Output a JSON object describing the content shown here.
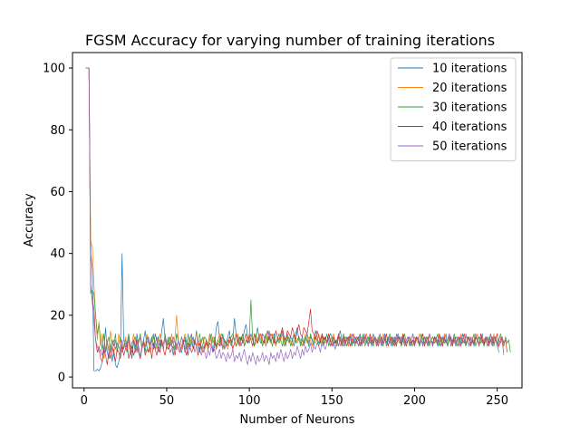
{
  "chart_data": {
    "type": "line",
    "title": "FGSM Accuracy for varying number of training iterations",
    "xlabel": "Number of Neurons",
    "ylabel": "Accuracy",
    "xlim": [
      -7,
      265
    ],
    "ylim": [
      -3.5,
      105
    ],
    "xticks": [
      0,
      50,
      100,
      150,
      200,
      250
    ],
    "yticks": [
      0,
      20,
      40,
      60,
      80,
      100
    ],
    "grid": false,
    "legend_position": "top-right",
    "series": [
      {
        "name": "10 iterations",
        "color": "#1f77b4",
        "x_start": 1,
        "x_step": 1,
        "values": [
          100,
          100,
          100,
          40,
          35,
          2,
          2,
          2.5,
          2,
          3,
          5,
          8,
          16,
          8,
          6,
          10,
          5,
          9,
          4,
          3,
          5,
          8,
          40,
          12,
          10,
          8,
          13,
          10,
          6,
          12,
          8,
          14,
          10,
          6,
          9,
          12,
          15,
          10,
          8,
          11,
          13,
          9,
          14,
          12,
          8,
          10,
          15,
          19,
          12,
          10,
          9,
          13,
          11,
          7,
          10,
          14,
          12,
          9,
          8,
          11,
          13,
          10,
          7,
          12,
          14,
          9,
          11,
          15,
          10,
          8,
          12,
          13,
          9,
          11,
          10,
          14,
          12,
          8,
          10,
          16,
          18,
          12,
          10,
          14,
          9,
          11,
          13,
          15,
          10,
          12,
          19,
          14,
          11,
          13,
          10,
          12,
          15,
          17,
          13,
          11,
          14,
          12,
          10,
          13,
          16,
          12,
          11,
          14,
          13,
          10,
          12,
          15,
          11,
          13,
          14,
          10,
          12,
          11,
          13,
          15,
          12,
          10,
          14,
          11,
          13,
          12,
          10,
          14,
          16,
          12,
          11,
          13,
          10,
          12,
          14,
          11,
          13,
          12,
          10,
          15,
          13,
          11,
          12,
          14,
          10,
          13,
          11,
          12,
          14,
          13,
          10,
          12,
          11,
          13,
          15,
          12,
          10,
          11,
          13,
          12,
          14,
          10,
          12,
          13,
          11,
          12,
          14,
          10,
          13,
          12,
          11,
          12,
          13,
          10,
          14,
          12,
          11,
          13,
          12,
          10,
          12,
          14,
          11,
          13,
          12,
          10,
          13,
          11,
          12,
          14,
          12,
          10,
          13,
          11,
          12,
          13,
          10,
          12,
          14,
          11,
          12,
          13,
          10,
          12,
          11,
          13,
          12,
          10,
          14,
          12,
          11,
          13,
          12,
          10,
          12,
          13,
          11,
          12,
          14,
          10,
          12,
          13,
          11,
          12,
          10,
          13,
          12,
          11,
          14,
          12,
          10,
          12,
          13,
          11,
          12,
          10,
          13,
          12,
          11,
          12,
          14,
          10,
          12,
          13,
          11,
          12,
          10,
          13,
          12,
          11,
          8
        ]
      },
      {
        "name": "20 iterations",
        "color": "#ff7f0e",
        "x_start": 1,
        "x_step": 1,
        "values": [
          100,
          100,
          100,
          44,
          42,
          30,
          20,
          12,
          18,
          10,
          14,
          6,
          9,
          12,
          8,
          15,
          10,
          7,
          12,
          9,
          14,
          11,
          8,
          10,
          13,
          9,
          12,
          7,
          11,
          14,
          10,
          8,
          12,
          13,
          9,
          11,
          10,
          14,
          12,
          8,
          10,
          13,
          11,
          9,
          12,
          14,
          10,
          11,
          13,
          9,
          12,
          10,
          14,
          11,
          13,
          20,
          12,
          10,
          9,
          11,
          14,
          12,
          10,
          13,
          11,
          9,
          12,
          14,
          10,
          12,
          11,
          13,
          9,
          12,
          10,
          14,
          11,
          13,
          12,
          10,
          12,
          14,
          11,
          13,
          12,
          10,
          9,
          12,
          11,
          13,
          12,
          10,
          14,
          11,
          12,
          13,
          10,
          12,
          11,
          14,
          12,
          13,
          10,
          11,
          12,
          14,
          13,
          11,
          12,
          10,
          13,
          12,
          11,
          14,
          12,
          10,
          13,
          11,
          12,
          14,
          10,
          12,
          13,
          11,
          12,
          10,
          14,
          12,
          11,
          13,
          12,
          10,
          12,
          14,
          11,
          13,
          12,
          10,
          13,
          11,
          12,
          14,
          12,
          10,
          13,
          11,
          12,
          13,
          10,
          12,
          14,
          11,
          12,
          13,
          10,
          12,
          11,
          13,
          12,
          10,
          14,
          12,
          11,
          13,
          12,
          10,
          12,
          13,
          11,
          12,
          14,
          10,
          12,
          13,
          11,
          12,
          10,
          13,
          12,
          11,
          14,
          12,
          10,
          12,
          13,
          11,
          12,
          10,
          13,
          12,
          11,
          12,
          14,
          10,
          12,
          13,
          11,
          12,
          10,
          13,
          12,
          11,
          14,
          12,
          10,
          13,
          11,
          12,
          14,
          12,
          10,
          13,
          11,
          12,
          13,
          10,
          12,
          14,
          11,
          12,
          13,
          10,
          12,
          11,
          13,
          12,
          10,
          14,
          12,
          11,
          13,
          12,
          10,
          12,
          13,
          11,
          12,
          14,
          10,
          12,
          13,
          11,
          12,
          10,
          13,
          12,
          11,
          14,
          12,
          10,
          12,
          13,
          11,
          8
        ]
      },
      {
        "name": "30 iterations",
        "color": "#2ca02c",
        "x_start": 1,
        "x_step": 1,
        "values": [
          100,
          100,
          100,
          27,
          28,
          27,
          20,
          14,
          17,
          12,
          9,
          14,
          8,
          11,
          13,
          9,
          12,
          10,
          14,
          8,
          11,
          13,
          10,
          9,
          12,
          11,
          14,
          10,
          8,
          12,
          13,
          9,
          11,
          14,
          10,
          12,
          8,
          13,
          11,
          10,
          12,
          14,
          9,
          11,
          13,
          10,
          12,
          9,
          14,
          11,
          13,
          10,
          12,
          11,
          9,
          14,
          12,
          10,
          13,
          11,
          12,
          9,
          14,
          10,
          12,
          13,
          11,
          10,
          12,
          14,
          9,
          11,
          13,
          12,
          10,
          12,
          14,
          11,
          13,
          10,
          12,
          11,
          14,
          13,
          12,
          10,
          12,
          11,
          13,
          14,
          12,
          10,
          11,
          13,
          12,
          14,
          10,
          12,
          11,
          13,
          25,
          12,
          10,
          14,
          11,
          13,
          12,
          10,
          12,
          14,
          11,
          13,
          12,
          10,
          13,
          11,
          12,
          14,
          12,
          10,
          13,
          11,
          12,
          13,
          10,
          12,
          14,
          11,
          12,
          13,
          10,
          12,
          11,
          13,
          12,
          10,
          14,
          12,
          11,
          13,
          12,
          10,
          12,
          13,
          11,
          12,
          14,
          10,
          12,
          13,
          11,
          12,
          10,
          13,
          12,
          11,
          14,
          12,
          10,
          12,
          13,
          11,
          12,
          10,
          13,
          12,
          11,
          12,
          14,
          10,
          12,
          13,
          11,
          12,
          10,
          13,
          12,
          11,
          14,
          12,
          10,
          13,
          11,
          12,
          14,
          12,
          10,
          13,
          11,
          12,
          13,
          10,
          12,
          14,
          11,
          12,
          13,
          10,
          12,
          11,
          13,
          12,
          10,
          14,
          12,
          11,
          13,
          12,
          10,
          12,
          13,
          11,
          12,
          14,
          10,
          12,
          13,
          11,
          12,
          10,
          13,
          12,
          11,
          14,
          12,
          10,
          12,
          13,
          11,
          12,
          10,
          13,
          12,
          11,
          12,
          14,
          10,
          12,
          13,
          11,
          12,
          10,
          13,
          12,
          11,
          14,
          12,
          10,
          13,
          11,
          12,
          14,
          12,
          10,
          13,
          11,
          12,
          8
        ]
      },
      {
        "name": "40 iterations",
        "color": "#d62728",
        "x_start": 1,
        "x_step": 1,
        "values": [
          100,
          100,
          100,
          30,
          25,
          22,
          12,
          8,
          10,
          6,
          5,
          9,
          7,
          4,
          8,
          6,
          10,
          7,
          5,
          9,
          8,
          6,
          10,
          7,
          9,
          11,
          6,
          8,
          10,
          7,
          9,
          12,
          8,
          6,
          10,
          11,
          7,
          9,
          8,
          10,
          6,
          11,
          9,
          7,
          10,
          8,
          12,
          9,
          7,
          10,
          11,
          8,
          9,
          10,
          7,
          11,
          9,
          8,
          10,
          12,
          9,
          7,
          11,
          10,
          8,
          9,
          12,
          10,
          7,
          11,
          9,
          8,
          10,
          12,
          9,
          11,
          10,
          8,
          12,
          9,
          11,
          10,
          13,
          9,
          12,
          11,
          10,
          13,
          12,
          9,
          11,
          14,
          12,
          10,
          13,
          11,
          12,
          14,
          11,
          13,
          12,
          10,
          14,
          12,
          11,
          13,
          14,
          12,
          11,
          13,
          15,
          12,
          14,
          13,
          11,
          15,
          13,
          12,
          14,
          16,
          13,
          12,
          15,
          14,
          13,
          16,
          14,
          12,
          15,
          17,
          14,
          13,
          16,
          15,
          14,
          18,
          22,
          15,
          14,
          12,
          15,
          13,
          11,
          14,
          12,
          13,
          11,
          14,
          12,
          10,
          13,
          11,
          12,
          14,
          12,
          10,
          13,
          11,
          12,
          13,
          10,
          12,
          14,
          11,
          12,
          13,
          10,
          12,
          11,
          13,
          12,
          10,
          14,
          12,
          11,
          13,
          12,
          10,
          12,
          13,
          11,
          12,
          14,
          10,
          12,
          13,
          11,
          12,
          10,
          13,
          12,
          11,
          14,
          12,
          10,
          12,
          13,
          11,
          12,
          10,
          13,
          12,
          11,
          12,
          14,
          10,
          12,
          13,
          11,
          12,
          10,
          13,
          12,
          11,
          14,
          12,
          10,
          13,
          11,
          12,
          14,
          12,
          10,
          13,
          11,
          12,
          13,
          10,
          12,
          14,
          11,
          12,
          13,
          10,
          12,
          11,
          13,
          12,
          10,
          14,
          12,
          11,
          13,
          12,
          10,
          12,
          13,
          11,
          12,
          14,
          10,
          12,
          13,
          11,
          12,
          8
        ]
      },
      {
        "name": "50 iterations",
        "color": "#9467bd",
        "x_start": 1,
        "x_step": 1,
        "values": [
          100,
          100,
          100,
          30,
          24,
          18,
          12,
          10,
          8,
          9,
          7,
          10,
          8,
          11,
          9,
          8,
          10,
          12,
          9,
          11,
          10,
          8,
          12,
          9,
          11,
          10,
          13,
          9,
          11,
          12,
          10,
          8,
          11,
          13,
          9,
          12,
          10,
          11,
          13,
          10,
          12,
          9,
          11,
          13,
          10,
          12,
          11,
          9,
          13,
          10,
          12,
          11,
          10,
          13,
          11,
          9,
          12,
          10,
          13,
          11,
          8,
          12,
          10,
          9,
          11,
          13,
          8,
          10,
          12,
          9,
          7,
          10,
          8,
          6,
          9,
          7,
          10,
          8,
          9,
          6,
          7,
          9,
          6,
          8,
          7,
          5,
          8,
          6,
          7,
          9,
          5,
          7,
          6,
          8,
          5,
          7,
          9,
          6,
          4,
          7,
          5,
          8,
          6,
          4,
          7,
          5,
          6,
          8,
          5,
          7,
          6,
          4,
          8,
          6,
          7,
          5,
          8,
          6,
          9,
          7,
          5,
          8,
          6,
          7,
          9,
          6,
          8,
          7,
          10,
          8,
          6,
          9,
          7,
          10,
          8,
          9,
          11,
          8,
          10,
          9,
          11,
          10,
          8,
          12,
          10,
          9,
          11,
          13,
          10,
          12,
          11,
          9,
          12,
          10,
          13,
          11,
          12,
          10,
          13,
          11,
          12,
          14,
          11,
          13,
          12,
          10,
          13,
          11,
          12,
          14,
          12,
          10,
          13,
          11,
          12,
          13,
          10,
          12,
          14,
          11,
          12,
          13,
          10,
          12,
          11,
          13,
          12,
          10,
          14,
          12,
          11,
          13,
          12,
          10,
          12,
          13,
          11,
          12,
          14,
          10,
          12,
          13,
          11,
          12,
          10,
          13,
          12,
          11,
          14,
          12,
          10,
          12,
          13,
          11,
          12,
          10,
          13,
          12,
          11,
          12,
          14,
          10,
          12,
          13,
          11,
          12,
          10,
          13,
          12,
          11,
          14,
          12,
          10,
          13,
          11,
          12,
          14,
          12,
          10,
          13,
          11,
          12,
          13,
          10,
          12,
          14,
          11,
          12,
          13,
          10,
          12,
          11,
          13,
          7
        ]
      }
    ]
  }
}
